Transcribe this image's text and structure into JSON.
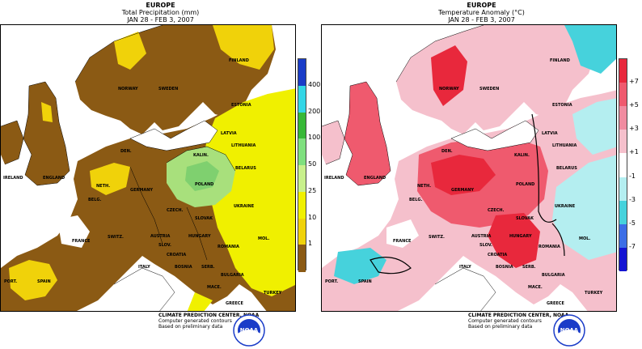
{
  "left_panel": {
    "title": "EUROPE",
    "subtitle": "Total Precipitation (mm)",
    "dates": "JAN 28 - FEB  3, 2007",
    "legend": {
      "ticks": [
        "400",
        "200",
        "100",
        "50",
        "25",
        "10",
        "1"
      ],
      "colors": [
        "#1a3cc8",
        "#33d6e6",
        "#37b837",
        "#7fe07f",
        "#c8f08c",
        "#f0f000",
        "#f0d20a",
        "#8b5a14"
      ]
    }
  },
  "right_panel": {
    "title": "EUROPE",
    "subtitle": "Temperature Anomaly (°C)",
    "dates": "JAN 28 - FEB  3, 2007",
    "legend": {
      "ticks": [
        "+7",
        "+5",
        "+3",
        "+1",
        "-1",
        "-3",
        "-5",
        "-7"
      ],
      "colors": [
        "#e8283c",
        "#ef5a6e",
        "#f08ca0",
        "#f5c0cc",
        "#ffffff",
        "#b4eef0",
        "#46d2dc",
        "#3c6ee6",
        "#1414d2"
      ]
    }
  },
  "credit": {
    "line1": "CLIMATE PREDICTION CENTER, NOAA",
    "line2": "Computer generated contours",
    "line3": "Based on preliminary data"
  },
  "logo_text": "NOAA",
  "countries": {
    "norway": "NORWAY",
    "sweden": "SWEDEN",
    "finland": "FINLAND",
    "estonia": "ESTONIA",
    "latvia": "LATVIA",
    "lithuania": "LITHUANIA",
    "belarus": "BELARUS",
    "denmark": "DEN.",
    "ireland": "IRELAND",
    "england": "ENGLAND",
    "neth": "NETH.",
    "belg": "BELG.",
    "germany": "GERMANY",
    "poland": "POLAND",
    "czech": "CZECH.",
    "slovak": "SLOVAK",
    "ukraine": "UKRAINE",
    "france": "FRANCE",
    "switz": "SWITZ.",
    "austria": "AUSTRIA",
    "hungary": "HUNGARY",
    "romania": "ROMANIA",
    "slov": "SLOV.",
    "croatia": "CROATIA",
    "bosnia": "BOSNIA",
    "serbia": "SERB.",
    "bulgaria": "BULGARIA",
    "italy": "ITALY",
    "spain": "SPAIN",
    "port": "PORT.",
    "mold": "MOL.",
    "mace": "MACE.",
    "greece": "GREECE",
    "turkey": "TURKEY",
    "baltic": "KALIN."
  }
}
